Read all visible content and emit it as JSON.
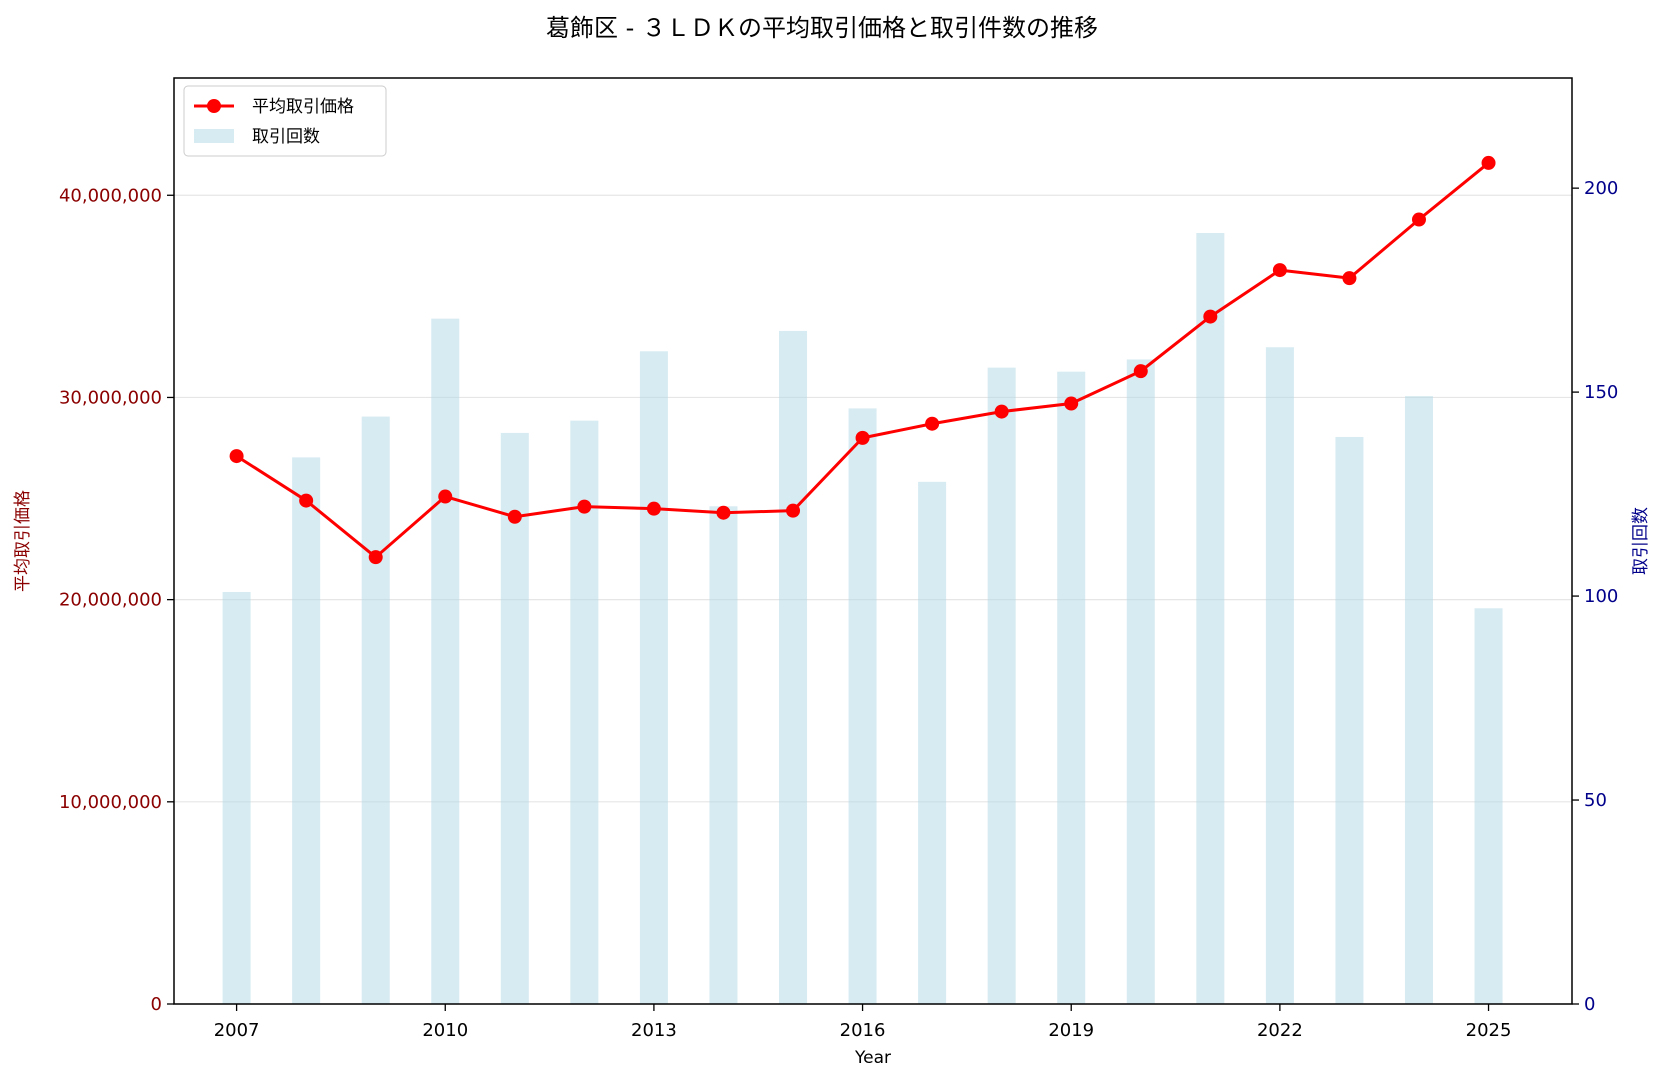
{
  "chart_data": {
    "type": "bar+line",
    "title": "葛飾区 - ３ＬＤＫの平均取引価格と取引件数の推移",
    "xlabel": "Year",
    "ylabel_left": "平均取引価格",
    "ylabel_right": "取引回数",
    "x": [
      2007,
      2008,
      2009,
      2010,
      2011,
      2012,
      2013,
      2014,
      2015,
      2016,
      2017,
      2018,
      2019,
      2020,
      2021,
      2022,
      2023,
      2024,
      2025
    ],
    "x_ticks": [
      "2007",
      "2010",
      "2013",
      "2016",
      "2019",
      "2022",
      "2025"
    ],
    "y_left_ticks": [
      "0",
      "10,000,000",
      "20,000,000",
      "30,000,000",
      "40,000,000"
    ],
    "y_right_ticks": [
      "0",
      "50",
      "100",
      "150",
      "200"
    ],
    "ylim_left": [
      0,
      45800000
    ],
    "ylim_right": [
      0,
      227
    ],
    "grid": "horizontal",
    "legend_placement": "top-left",
    "series": [
      {
        "name": "平均取引価格",
        "kind": "line",
        "axis": "left",
        "color": "#ff0000",
        "values": [
          27100000,
          24900000,
          22100000,
          25100000,
          24100000,
          24600000,
          24500000,
          24300000,
          24400000,
          28000000,
          28700000,
          29300000,
          29700000,
          31300000,
          34000000,
          36300000,
          35900000,
          38800000,
          41600000
        ]
      },
      {
        "name": "取引回数",
        "kind": "bar",
        "axis": "right",
        "color": "#add8e6",
        "values": [
          101,
          134,
          144,
          168,
          140,
          143,
          160,
          122,
          165,
          146,
          128,
          156,
          155,
          158,
          189,
          161,
          139,
          149,
          97
        ]
      }
    ],
    "colors": {
      "left_axis": "#8b0000",
      "right_axis": "#00008b"
    }
  }
}
